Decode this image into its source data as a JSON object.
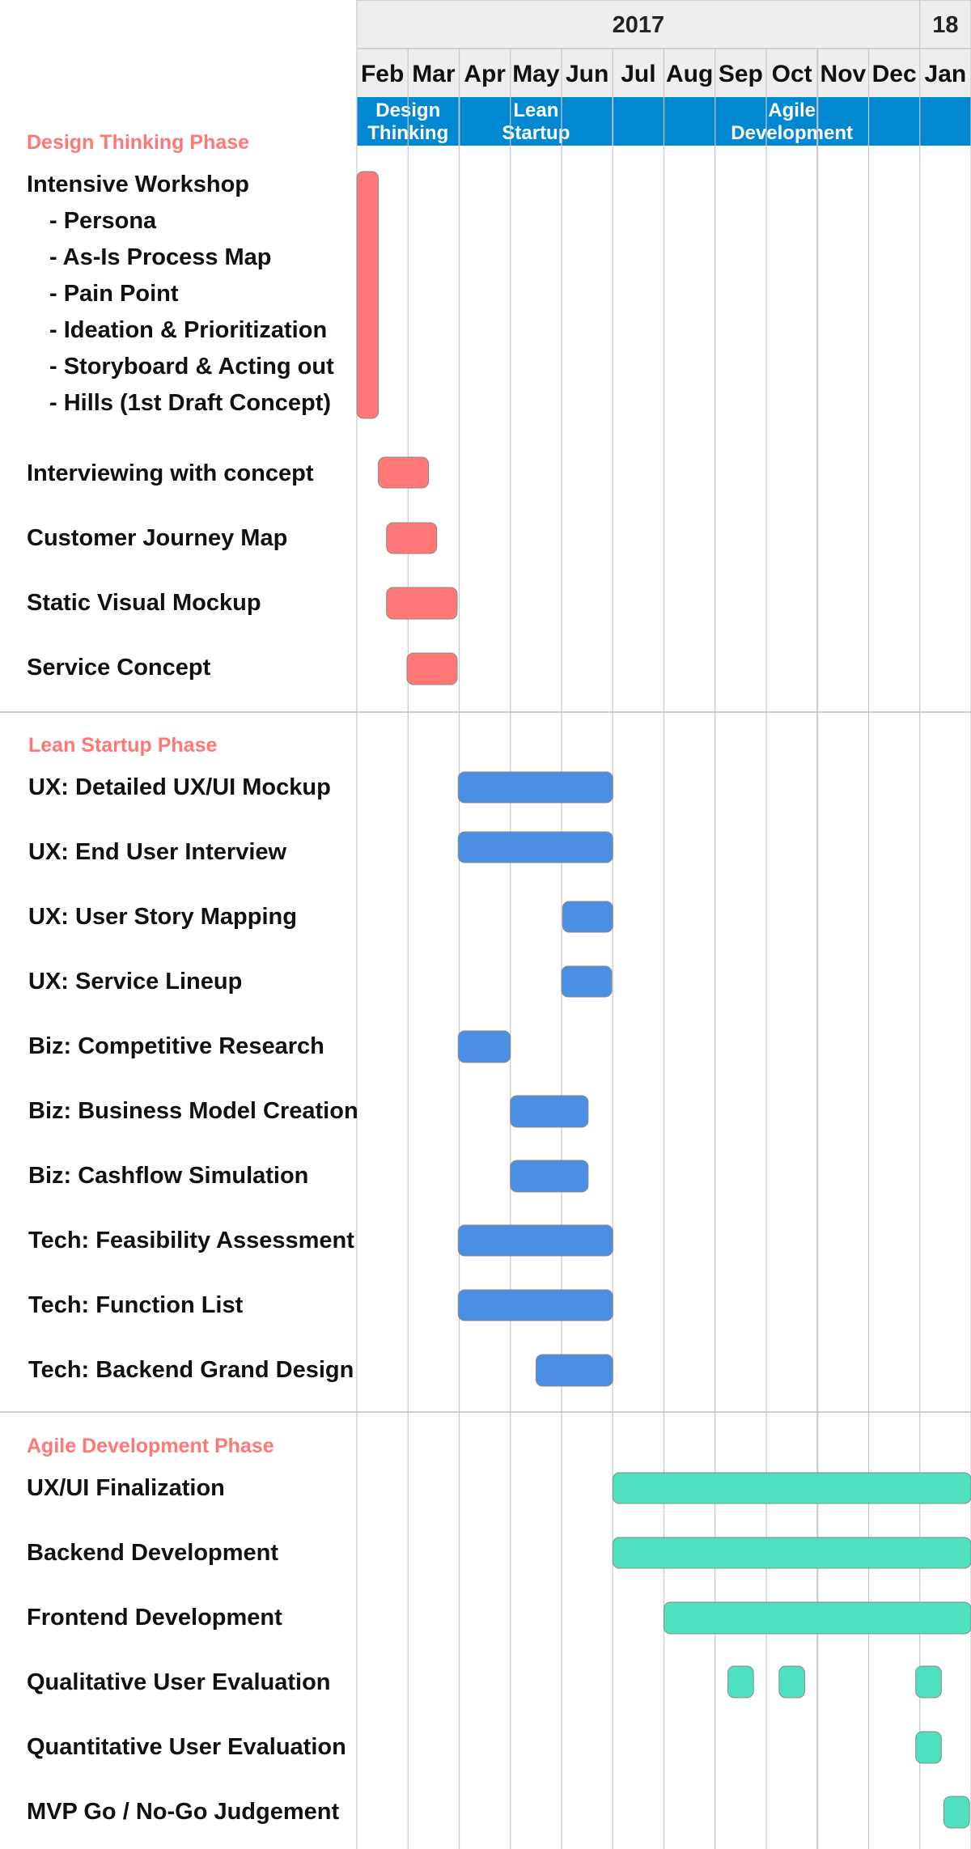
{
  "colors": {
    "design": "#ff7777",
    "lean": "#4a8fe2",
    "agile": "#4fe0c0",
    "phase_band": "#0288d1",
    "section_title": "#ff7777",
    "grid": "#c8c8c8",
    "header_bg": "#eeeeee"
  },
  "chart_data": {
    "type": "gantt",
    "years": [
      {
        "label": "2017",
        "start": 0,
        "end": 11
      },
      {
        "label": "18",
        "start": 11,
        "end": 12
      }
    ],
    "months": [
      "Feb",
      "Mar",
      "Apr",
      "May",
      "Jun",
      "Jul",
      "Aug",
      "Sep",
      "Oct",
      "Nov",
      "Dec",
      "Jan"
    ],
    "phases": [
      {
        "lines": [
          "Design",
          "Thinking"
        ],
        "start": 0,
        "end": 2
      },
      {
        "lines": [
          "Lean",
          "Startup"
        ],
        "start": 2,
        "end": 5
      },
      {
        "lines": [
          "Agile",
          "Development"
        ],
        "start": 5,
        "end": 12
      }
    ],
    "sections": [
      {
        "title": "Design Thinking Phase",
        "color": "design",
        "tasks": [
          {
            "label": "Intensive Workshop",
            "sublabels": [
              "- Persona",
              "- As-Is Process Map",
              "- Pain Point",
              "- Ideation & Prioritization",
              "- Storyboard & Acting out",
              "- Hills (1st Draft Concept)"
            ],
            "bars": [
              [
                0.0,
                0.42
              ]
            ]
          },
          {
            "label": "Interviewing with concept",
            "bars": [
              [
                0.42,
                1.4
              ]
            ]
          },
          {
            "label": "Customer Journey Map",
            "bars": [
              [
                0.58,
                1.56
              ]
            ]
          },
          {
            "label": "Static Visual Mockup",
            "bars": [
              [
                0.58,
                1.96
              ]
            ]
          },
          {
            "label": "Service Concept",
            "bars": [
              [
                0.98,
                1.96
              ]
            ]
          }
        ]
      },
      {
        "title": "Lean Startup Phase",
        "color": "lean",
        "tasks": [
          {
            "label": "UX: Detailed UX/UI Mockup",
            "bars": [
              [
                1.98,
                5.0
              ]
            ]
          },
          {
            "label": "UX: End User Interview",
            "bars": [
              [
                1.98,
                5.0
              ]
            ]
          },
          {
            "label": "UX: User Story Mapping",
            "bars": [
              [
                4.02,
                5.0
              ]
            ]
          },
          {
            "label": "UX: Service Lineup",
            "bars": [
              [
                4.0,
                4.98
              ]
            ]
          },
          {
            "label": "Biz: Competitive Research",
            "bars": [
              [
                1.98,
                3.0
              ]
            ]
          },
          {
            "label": "Biz: Business Model Creation",
            "bars": [
              [
                3.0,
                4.52
              ]
            ]
          },
          {
            "label": "Biz: Cashflow Simulation",
            "bars": [
              [
                3.0,
                4.52
              ]
            ]
          },
          {
            "label": "Tech: Feasibility Assessment",
            "bars": [
              [
                1.98,
                5.0
              ]
            ]
          },
          {
            "label": "Tech: Function List",
            "bars": [
              [
                1.98,
                5.0
              ]
            ]
          },
          {
            "label": "Tech: Backend Grand Design",
            "bars": [
              [
                3.5,
                5.0
              ]
            ]
          }
        ]
      },
      {
        "title": "Agile Development Phase",
        "color": "agile",
        "tasks": [
          {
            "label": "UX/UI Finalization",
            "bars": [
              [
                5.0,
                12.0
              ]
            ]
          },
          {
            "label": "Backend Development",
            "bars": [
              [
                5.0,
                12.0
              ]
            ]
          },
          {
            "label": "Frontend Development",
            "bars": [
              [
                6.0,
                12.0
              ]
            ]
          },
          {
            "label": "Qualitative User Evaluation",
            "bars": [
              [
                7.25,
                7.75
              ],
              [
                8.25,
                8.75
              ],
              [
                10.92,
                11.42
              ]
            ]
          },
          {
            "label": "Quantitative User Evaluation",
            "bars": [
              [
                10.92,
                11.42
              ]
            ]
          },
          {
            "label": "MVP Go / No-Go Judgement",
            "bars": [
              [
                11.47,
                11.97
              ]
            ]
          }
        ]
      }
    ]
  }
}
